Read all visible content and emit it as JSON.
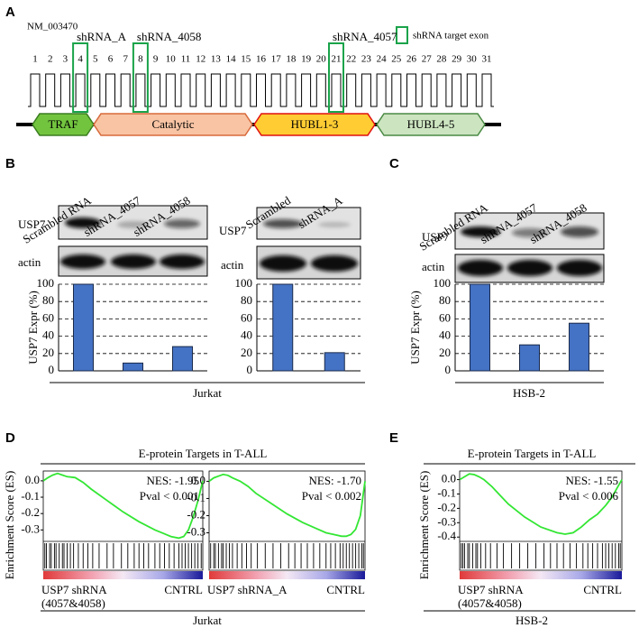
{
  "panel_labels": [
    "A",
    "B",
    "C",
    "D",
    "E"
  ],
  "panel_a": {
    "transcript": "NM_003470",
    "legend": "shRNA target exon",
    "exons": [
      1,
      2,
      3,
      4,
      5,
      6,
      7,
      8,
      9,
      10,
      11,
      12,
      13,
      14,
      15,
      16,
      17,
      18,
      19,
      20,
      21,
      22,
      23,
      24,
      25,
      26,
      27,
      28,
      29,
      30,
      31
    ],
    "target_exons": [
      4,
      8,
      21
    ],
    "shrna_labels": [
      "shRNA_A",
      "shRNA_4058",
      "shRNA_4057"
    ],
    "domains": [
      "TRAF",
      "Catalytic",
      "HUBL1-3",
      "HUBL4-5"
    ]
  },
  "blot_rows": [
    [
      "USP7",
      "actin"
    ],
    [
      "USP7",
      "actin"
    ],
    [
      "USP7",
      "actin"
    ]
  ],
  "group_labels": {
    "b": "Jurkat",
    "c": "HSB-2",
    "d": "Jurkat",
    "e": "HSB-2"
  },
  "chart_data": [
    {
      "type": "bar",
      "ylabel": "USP7 Expr (%)",
      "categories": [
        "Scrambled RNA",
        "shRNA_4057",
        "shRNA_4058"
      ],
      "values": [
        100,
        9,
        28
      ],
      "color": "#4472c4",
      "ylim": [
        0,
        100
      ],
      "yticks": [
        0,
        20,
        40,
        60,
        80,
        100
      ],
      "grid": true
    },
    {
      "type": "bar",
      "categories": [
        "Scrambled",
        "shRNA_A"
      ],
      "values": [
        100,
        21
      ],
      "color": "#4472c4",
      "ylim": [
        0,
        100
      ],
      "yticks": [
        0,
        20,
        40,
        60,
        80,
        100
      ],
      "grid": true
    },
    {
      "type": "bar",
      "ylabel": "USP7 Expr (%)",
      "categories": [
        "Scrambled RNA",
        "shRNA_4057",
        "shRNA_4058"
      ],
      "values": [
        100,
        30,
        55
      ],
      "color": "#4472c4",
      "ylim": [
        0,
        100
      ],
      "yticks": [
        0,
        20,
        40,
        60,
        80,
        100
      ],
      "grid": true
    },
    {
      "type": "line",
      "title": "E-protein Targets in T-ALL",
      "ylabel": "Enrichment Score (ES)",
      "color": "#33e633",
      "x": [
        0,
        3,
        6,
        9,
        12,
        15,
        20,
        25,
        30,
        40,
        50,
        60,
        70,
        75,
        80,
        85,
        88,
        91,
        94,
        97,
        100
      ],
      "values": [
        0,
        0.02,
        0.035,
        0.045,
        0.035,
        0.025,
        0.02,
        -0.01,
        -0.05,
        -0.12,
        -0.19,
        -0.25,
        -0.3,
        -0.32,
        -0.34,
        -0.35,
        -0.34,
        -0.3,
        -0.22,
        -0.12,
        0
      ],
      "xlim": [
        0,
        100
      ],
      "ylim": [
        -0.37,
        0.06
      ],
      "yticks": [
        {
          "value": 0,
          "label": "0.0"
        },
        -0.1,
        -0.2,
        -0.3
      ],
      "annotations": [
        "NES: -1.95",
        "Pval < 0.001"
      ],
      "left_label": [
        "USP7 shRNA",
        "(4057&4058)"
      ],
      "right_label": "CNTRL",
      "hits": [
        1,
        2,
        4,
        5,
        7,
        8,
        10,
        12,
        13,
        15,
        17,
        19,
        22,
        25,
        28,
        31,
        35,
        40,
        44,
        49,
        53,
        57,
        60,
        63,
        66,
        70,
        73,
        76,
        79,
        82,
        85,
        87,
        89,
        91,
        93,
        95,
        97,
        99
      ]
    },
    {
      "type": "line",
      "color": "#33e633",
      "x": [
        0,
        3,
        6,
        9,
        12,
        15,
        20,
        25,
        30,
        40,
        50,
        60,
        70,
        75,
        80,
        85,
        88,
        91,
        94,
        97,
        100
      ],
      "values": [
        0,
        0.02,
        0.03,
        0.04,
        0.035,
        0.02,
        0,
        -0.03,
        -0.07,
        -0.13,
        -0.19,
        -0.24,
        -0.28,
        -0.3,
        -0.31,
        -0.32,
        -0.32,
        -0.31,
        -0.28,
        -0.2,
        0
      ],
      "xlim": [
        0,
        100
      ],
      "ylim": [
        -0.35,
        0.06
      ],
      "yticks": [
        {
          "value": 0,
          "label": "0.0"
        },
        -0.1,
        -0.2,
        -0.3
      ],
      "annotations": [
        "NES: -1.70",
        "Pval < 0.002"
      ],
      "left_label": [
        "USP7 shRNA_A"
      ],
      "right_label": "CNTRL",
      "hits": [
        1,
        3,
        4,
        6,
        8,
        9,
        11,
        13,
        15,
        18,
        21,
        24,
        27,
        31,
        36,
        41,
        46,
        51,
        55,
        59,
        63,
        67,
        71,
        75,
        78,
        81,
        84,
        86,
        88,
        90,
        92,
        94,
        96,
        98,
        99
      ]
    },
    {
      "type": "line",
      "title": "E-protein Targets in T-ALL",
      "ylabel": "Enrichment Score (ES)",
      "color": "#33e633",
      "x": [
        0,
        3,
        6,
        9,
        12,
        15,
        20,
        25,
        30,
        40,
        50,
        60,
        65,
        70,
        75,
        80,
        85,
        90,
        94,
        97,
        100
      ],
      "values": [
        0,
        0.02,
        0.04,
        0.035,
        0.02,
        0,
        -0.05,
        -0.11,
        -0.17,
        -0.26,
        -0.33,
        -0.37,
        -0.38,
        -0.37,
        -0.33,
        -0.28,
        -0.24,
        -0.18,
        -0.12,
        -0.06,
        0
      ],
      "xlim": [
        0,
        100
      ],
      "ylim": [
        -0.43,
        0.06
      ],
      "yticks": [
        {
          "value": 0,
          "label": "0.0"
        },
        -0.1,
        -0.2,
        -0.3,
        -0.4
      ],
      "annotations": [
        "NES: -1.55",
        "Pval < 0.006"
      ],
      "left_label": [
        "USP7 shRNA",
        "(4057&4058)"
      ],
      "right_label": "CNTRL",
      "hits": [
        1,
        2,
        3,
        5,
        6,
        8,
        10,
        11,
        13,
        16,
        19,
        23,
        27,
        32,
        37,
        42,
        47,
        52,
        56,
        60,
        64,
        68,
        72,
        76,
        79,
        82,
        85,
        88,
        90,
        92,
        94,
        96,
        98,
        99
      ]
    }
  ]
}
